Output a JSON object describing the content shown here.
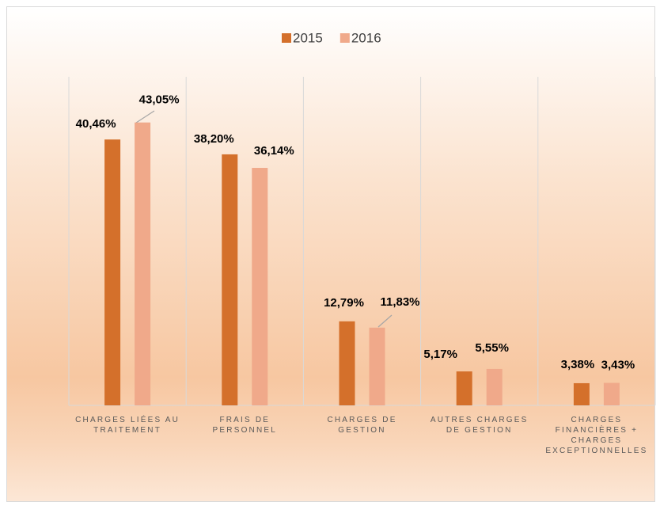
{
  "chart_data": {
    "type": "bar",
    "categories": [
      "CHARGES LIÉES AU TRAITEMENT",
      "FRAIS DE PERSONNEL",
      "CHARGES DE GESTION",
      "AUTRES CHARGES DE GESTION",
      "CHARGES FINANCIÈRES + CHARGES EXCEPTIONNELLES"
    ],
    "series": [
      {
        "name": "2015",
        "color": "#d4702b",
        "values": [
          40.46,
          38.2,
          12.79,
          5.17,
          3.38
        ],
        "value_labels": [
          "40,46%",
          "38,20%",
          "12,79%",
          "5,17%",
          "3,38%"
        ]
      },
      {
        "name": "2016",
        "color": "#f0a98a",
        "values": [
          43.05,
          36.14,
          11.83,
          5.55,
          3.43
        ],
        "value_labels": [
          "43,05%",
          "36,14%",
          "11,83%",
          "5,55%",
          "3,43%"
        ]
      }
    ],
    "ylim": [
      0,
      50
    ],
    "legend": "top"
  }
}
